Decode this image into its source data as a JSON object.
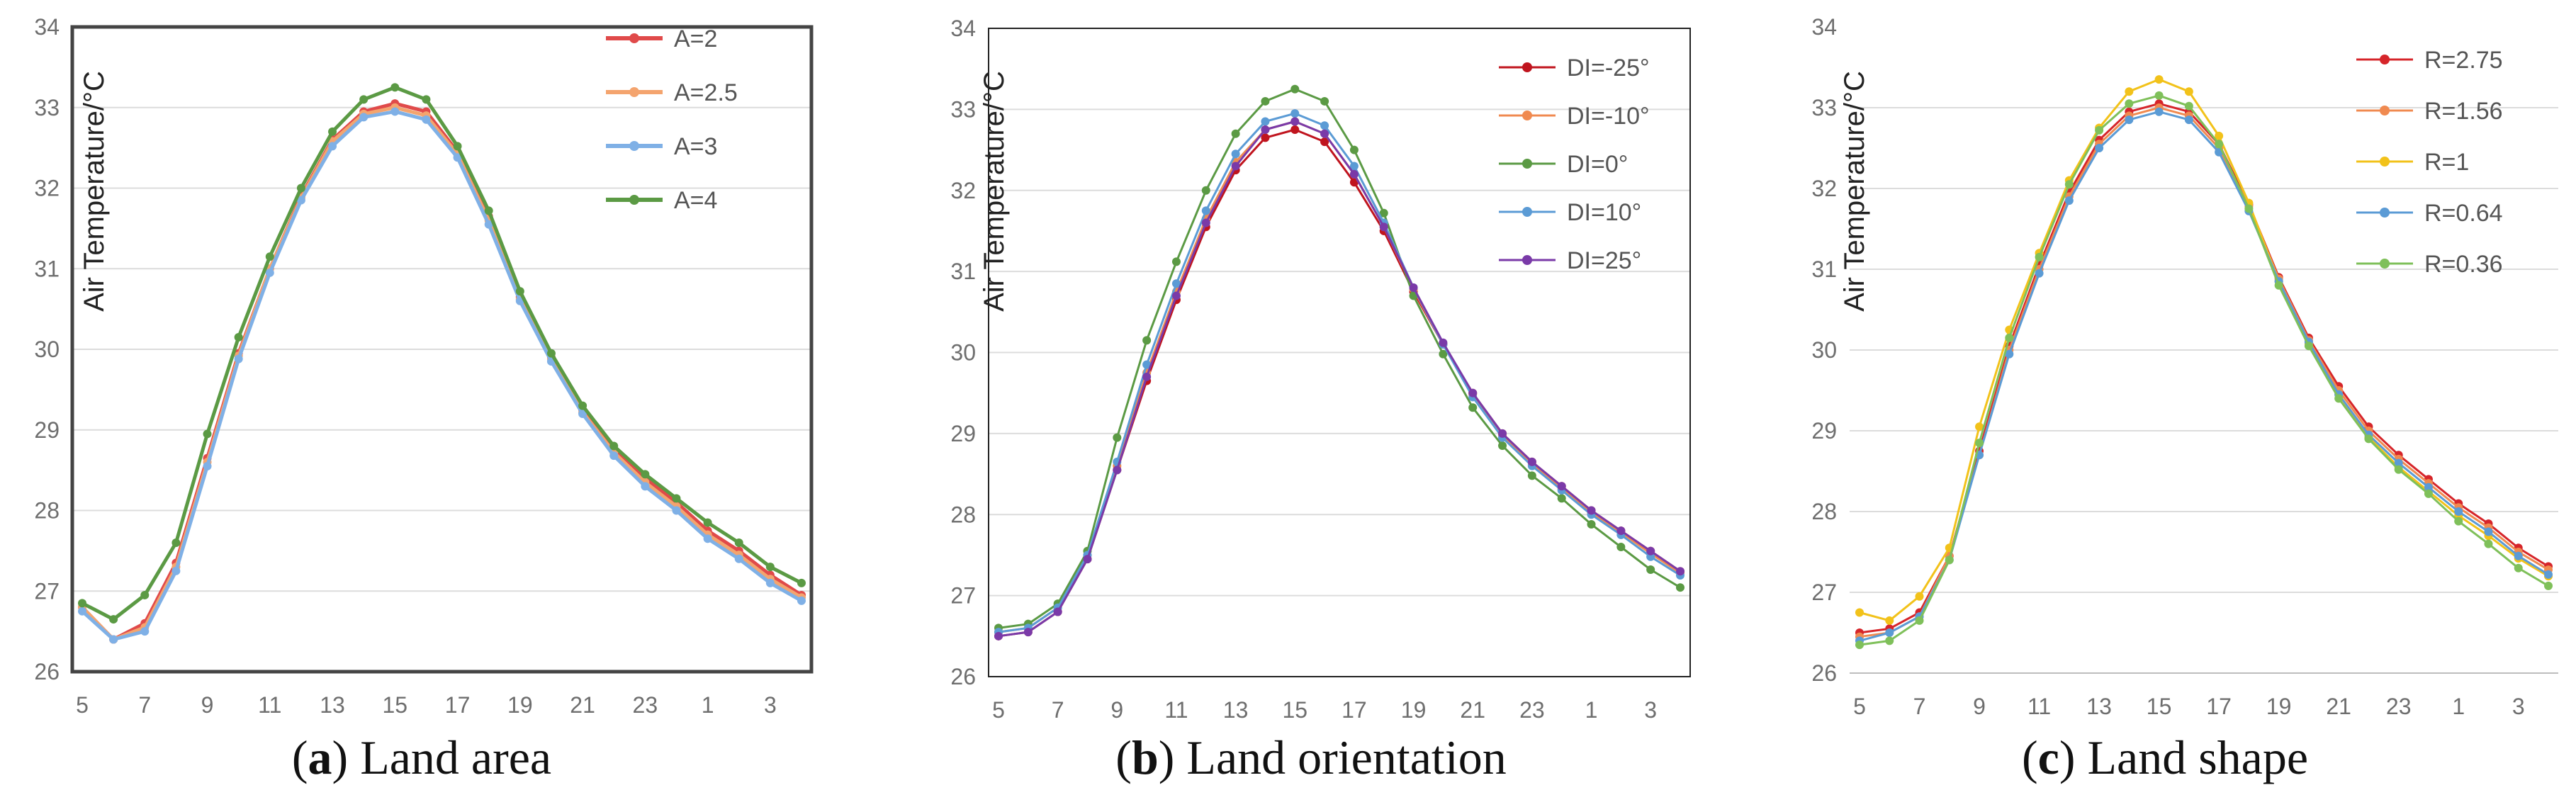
{
  "figure": {
    "captions": [
      {
        "letter": "a",
        "label": " Land area"
      },
      {
        "letter": "b",
        "label": " Land orientation"
      },
      {
        "letter": "c",
        "label": " Land shape"
      }
    ]
  },
  "chart_data": [
    {
      "type": "line",
      "title": "",
      "caption": "(a) Land area",
      "xlabel": "",
      "ylabel": "Air Temperature/°C",
      "categories": [
        "5",
        "6",
        "7",
        "8",
        "9",
        "10",
        "11",
        "12",
        "13",
        "14",
        "15",
        "16",
        "17",
        "18",
        "19",
        "20",
        "21",
        "22",
        "23",
        "24",
        "1",
        "2",
        "3",
        "4"
      ],
      "tick_labels": [
        "5",
        "7",
        "9",
        "11",
        "13",
        "15",
        "17",
        "19",
        "21",
        "23",
        "1",
        "3"
      ],
      "ylim": [
        26,
        34
      ],
      "yticks": [
        26,
        27,
        28,
        29,
        30,
        31,
        32,
        33,
        34
      ],
      "grid": true,
      "legend_position": "top-right",
      "series": [
        {
          "name": "A=2",
          "color": "#e04a4a",
          "values": [
            26.8,
            26.4,
            26.6,
            27.35,
            28.65,
            29.95,
            31.0,
            31.9,
            32.6,
            32.95,
            33.05,
            32.95,
            32.45,
            31.65,
            30.65,
            29.9,
            29.25,
            28.75,
            28.4,
            28.1,
            27.75,
            27.5,
            27.2,
            26.95
          ]
        },
        {
          "name": "A=2.5",
          "color": "#f4a46e",
          "values": [
            26.8,
            26.4,
            26.55,
            27.3,
            28.6,
            29.92,
            31.0,
            31.88,
            32.58,
            32.92,
            33.0,
            32.9,
            32.42,
            31.6,
            30.62,
            29.88,
            29.22,
            28.72,
            28.35,
            28.05,
            27.7,
            27.45,
            27.15,
            26.92
          ]
        },
        {
          "name": "A=3",
          "color": "#7fb0e6",
          "values": [
            26.75,
            26.4,
            26.5,
            27.25,
            28.55,
            29.88,
            30.95,
            31.85,
            32.52,
            32.88,
            32.95,
            32.85,
            32.38,
            31.55,
            30.6,
            29.85,
            29.2,
            28.68,
            28.3,
            28.0,
            27.65,
            27.4,
            27.1,
            26.88
          ]
        },
        {
          "name": "A=4",
          "color": "#5b9a44",
          "values": [
            26.85,
            26.65,
            26.95,
            27.6,
            28.95,
            30.15,
            31.15,
            32.0,
            32.7,
            33.1,
            33.25,
            33.1,
            32.52,
            31.72,
            30.72,
            29.95,
            29.3,
            28.8,
            28.45,
            28.15,
            27.85,
            27.6,
            27.3,
            27.1
          ]
        }
      ]
    },
    {
      "type": "line",
      "title": "",
      "caption": "(b) Land orientation",
      "xlabel": "",
      "ylabel": "Air Temperature/°C",
      "categories": [
        "5",
        "6",
        "7",
        "8",
        "9",
        "10",
        "11",
        "12",
        "13",
        "14",
        "15",
        "16",
        "17",
        "18",
        "19",
        "20",
        "21",
        "22",
        "23",
        "24",
        "1",
        "2",
        "3",
        "4"
      ],
      "tick_labels": [
        "5",
        "7",
        "9",
        "11",
        "13",
        "15",
        "17",
        "19",
        "21",
        "23",
        "1",
        "3"
      ],
      "ylim": [
        26,
        34
      ],
      "yticks": [
        26,
        27,
        28,
        29,
        30,
        31,
        32,
        33,
        34
      ],
      "grid": true,
      "legend_position": "top-right",
      "series": [
        {
          "name": "DI=-25°",
          "color": "#c0141e",
          "values": [
            26.5,
            26.55,
            26.8,
            27.45,
            28.55,
            29.65,
            30.65,
            31.55,
            32.25,
            32.65,
            32.75,
            32.6,
            32.1,
            31.5,
            30.75,
            30.1,
            29.5,
            29.0,
            28.65,
            28.35,
            28.05,
            27.8,
            27.55,
            27.3
          ]
        },
        {
          "name": "DI=-10°",
          "color": "#f08a50",
          "values": [
            26.55,
            26.6,
            26.85,
            27.5,
            28.6,
            29.75,
            30.75,
            31.65,
            32.35,
            32.75,
            32.85,
            32.7,
            32.2,
            31.55,
            30.78,
            30.1,
            29.48,
            28.98,
            28.62,
            28.32,
            28.02,
            27.78,
            27.52,
            27.28
          ]
        },
        {
          "name": "DI=0°",
          "color": "#5b9a44",
          "values": [
            26.6,
            26.65,
            26.9,
            27.55,
            28.95,
            30.15,
            31.12,
            32.0,
            32.7,
            33.1,
            33.25,
            33.1,
            32.5,
            31.72,
            30.7,
            29.98,
            29.32,
            28.85,
            28.48,
            28.2,
            27.88,
            27.6,
            27.32,
            27.1
          ]
        },
        {
          "name": "DI=10°",
          "color": "#5b9bd5",
          "values": [
            26.55,
            26.6,
            26.85,
            27.5,
            28.65,
            29.85,
            30.85,
            31.75,
            32.45,
            32.85,
            32.95,
            32.8,
            32.3,
            31.6,
            30.8,
            30.1,
            29.45,
            28.95,
            28.6,
            28.3,
            28.0,
            27.75,
            27.48,
            27.25
          ]
        },
        {
          "name": "DI=25°",
          "color": "#7a3aa8",
          "values": [
            26.5,
            26.55,
            26.8,
            27.45,
            28.55,
            29.7,
            30.7,
            31.6,
            32.3,
            32.75,
            32.85,
            32.7,
            32.2,
            31.55,
            30.8,
            30.12,
            29.5,
            29.0,
            28.65,
            28.35,
            28.05,
            27.8,
            27.55,
            27.3
          ]
        }
      ]
    },
    {
      "type": "line",
      "title": "",
      "caption": "(c) Land shape",
      "xlabel": "",
      "ylabel": "Air Temperature/°C",
      "categories": [
        "5",
        "6",
        "7",
        "8",
        "9",
        "10",
        "11",
        "12",
        "13",
        "14",
        "15",
        "16",
        "17",
        "18",
        "19",
        "20",
        "21",
        "22",
        "23",
        "24",
        "1",
        "2",
        "3",
        "4"
      ],
      "tick_labels": [
        "5",
        "7",
        "9",
        "11",
        "13",
        "15",
        "17",
        "19",
        "21",
        "23",
        "1",
        "3"
      ],
      "ylim": [
        26,
        34
      ],
      "yticks": [
        26,
        27,
        28,
        29,
        30,
        31,
        32,
        33,
        34
      ],
      "grid": true,
      "legend_position": "top-right",
      "series": [
        {
          "name": "R=2.75",
          "color": "#d6252a",
          "values": [
            26.5,
            26.55,
            26.75,
            27.45,
            28.75,
            30.05,
            31.05,
            31.95,
            32.6,
            32.95,
            33.05,
            32.95,
            32.55,
            31.8,
            30.9,
            30.15,
            29.55,
            29.05,
            28.7,
            28.4,
            28.1,
            27.85,
            27.55,
            27.32
          ]
        },
        {
          "name": "R=1.56",
          "color": "#f08a50",
          "values": [
            26.45,
            26.5,
            26.7,
            27.45,
            28.7,
            30.0,
            31.0,
            31.9,
            32.55,
            32.9,
            33.0,
            32.9,
            32.5,
            31.78,
            30.88,
            30.12,
            29.5,
            29.0,
            28.65,
            28.35,
            28.05,
            27.8,
            27.5,
            27.28
          ]
        },
        {
          "name": "R=1",
          "color": "#f2c21a",
          "values": [
            26.75,
            26.65,
            26.95,
            27.55,
            29.05,
            30.25,
            31.2,
            32.1,
            32.75,
            33.2,
            33.35,
            33.2,
            32.65,
            31.82,
            30.85,
            30.08,
            29.45,
            28.92,
            28.55,
            28.25,
            27.95,
            27.7,
            27.42,
            27.2
          ]
        },
        {
          "name": "R=0.64",
          "color": "#5b9bd5",
          "values": [
            26.4,
            26.5,
            26.7,
            27.4,
            28.7,
            29.95,
            30.95,
            31.85,
            32.5,
            32.85,
            32.95,
            32.85,
            32.45,
            31.72,
            30.85,
            30.1,
            29.45,
            28.95,
            28.6,
            28.3,
            28.0,
            27.75,
            27.45,
            27.22
          ]
        },
        {
          "name": "R=0.36",
          "color": "#7fc05a",
          "values": [
            26.35,
            26.4,
            26.65,
            27.4,
            28.85,
            30.15,
            31.15,
            32.05,
            32.72,
            33.05,
            33.15,
            33.02,
            32.55,
            31.75,
            30.8,
            30.05,
            29.4,
            28.9,
            28.52,
            28.22,
            27.88,
            27.6,
            27.3,
            27.08
          ]
        }
      ]
    }
  ]
}
